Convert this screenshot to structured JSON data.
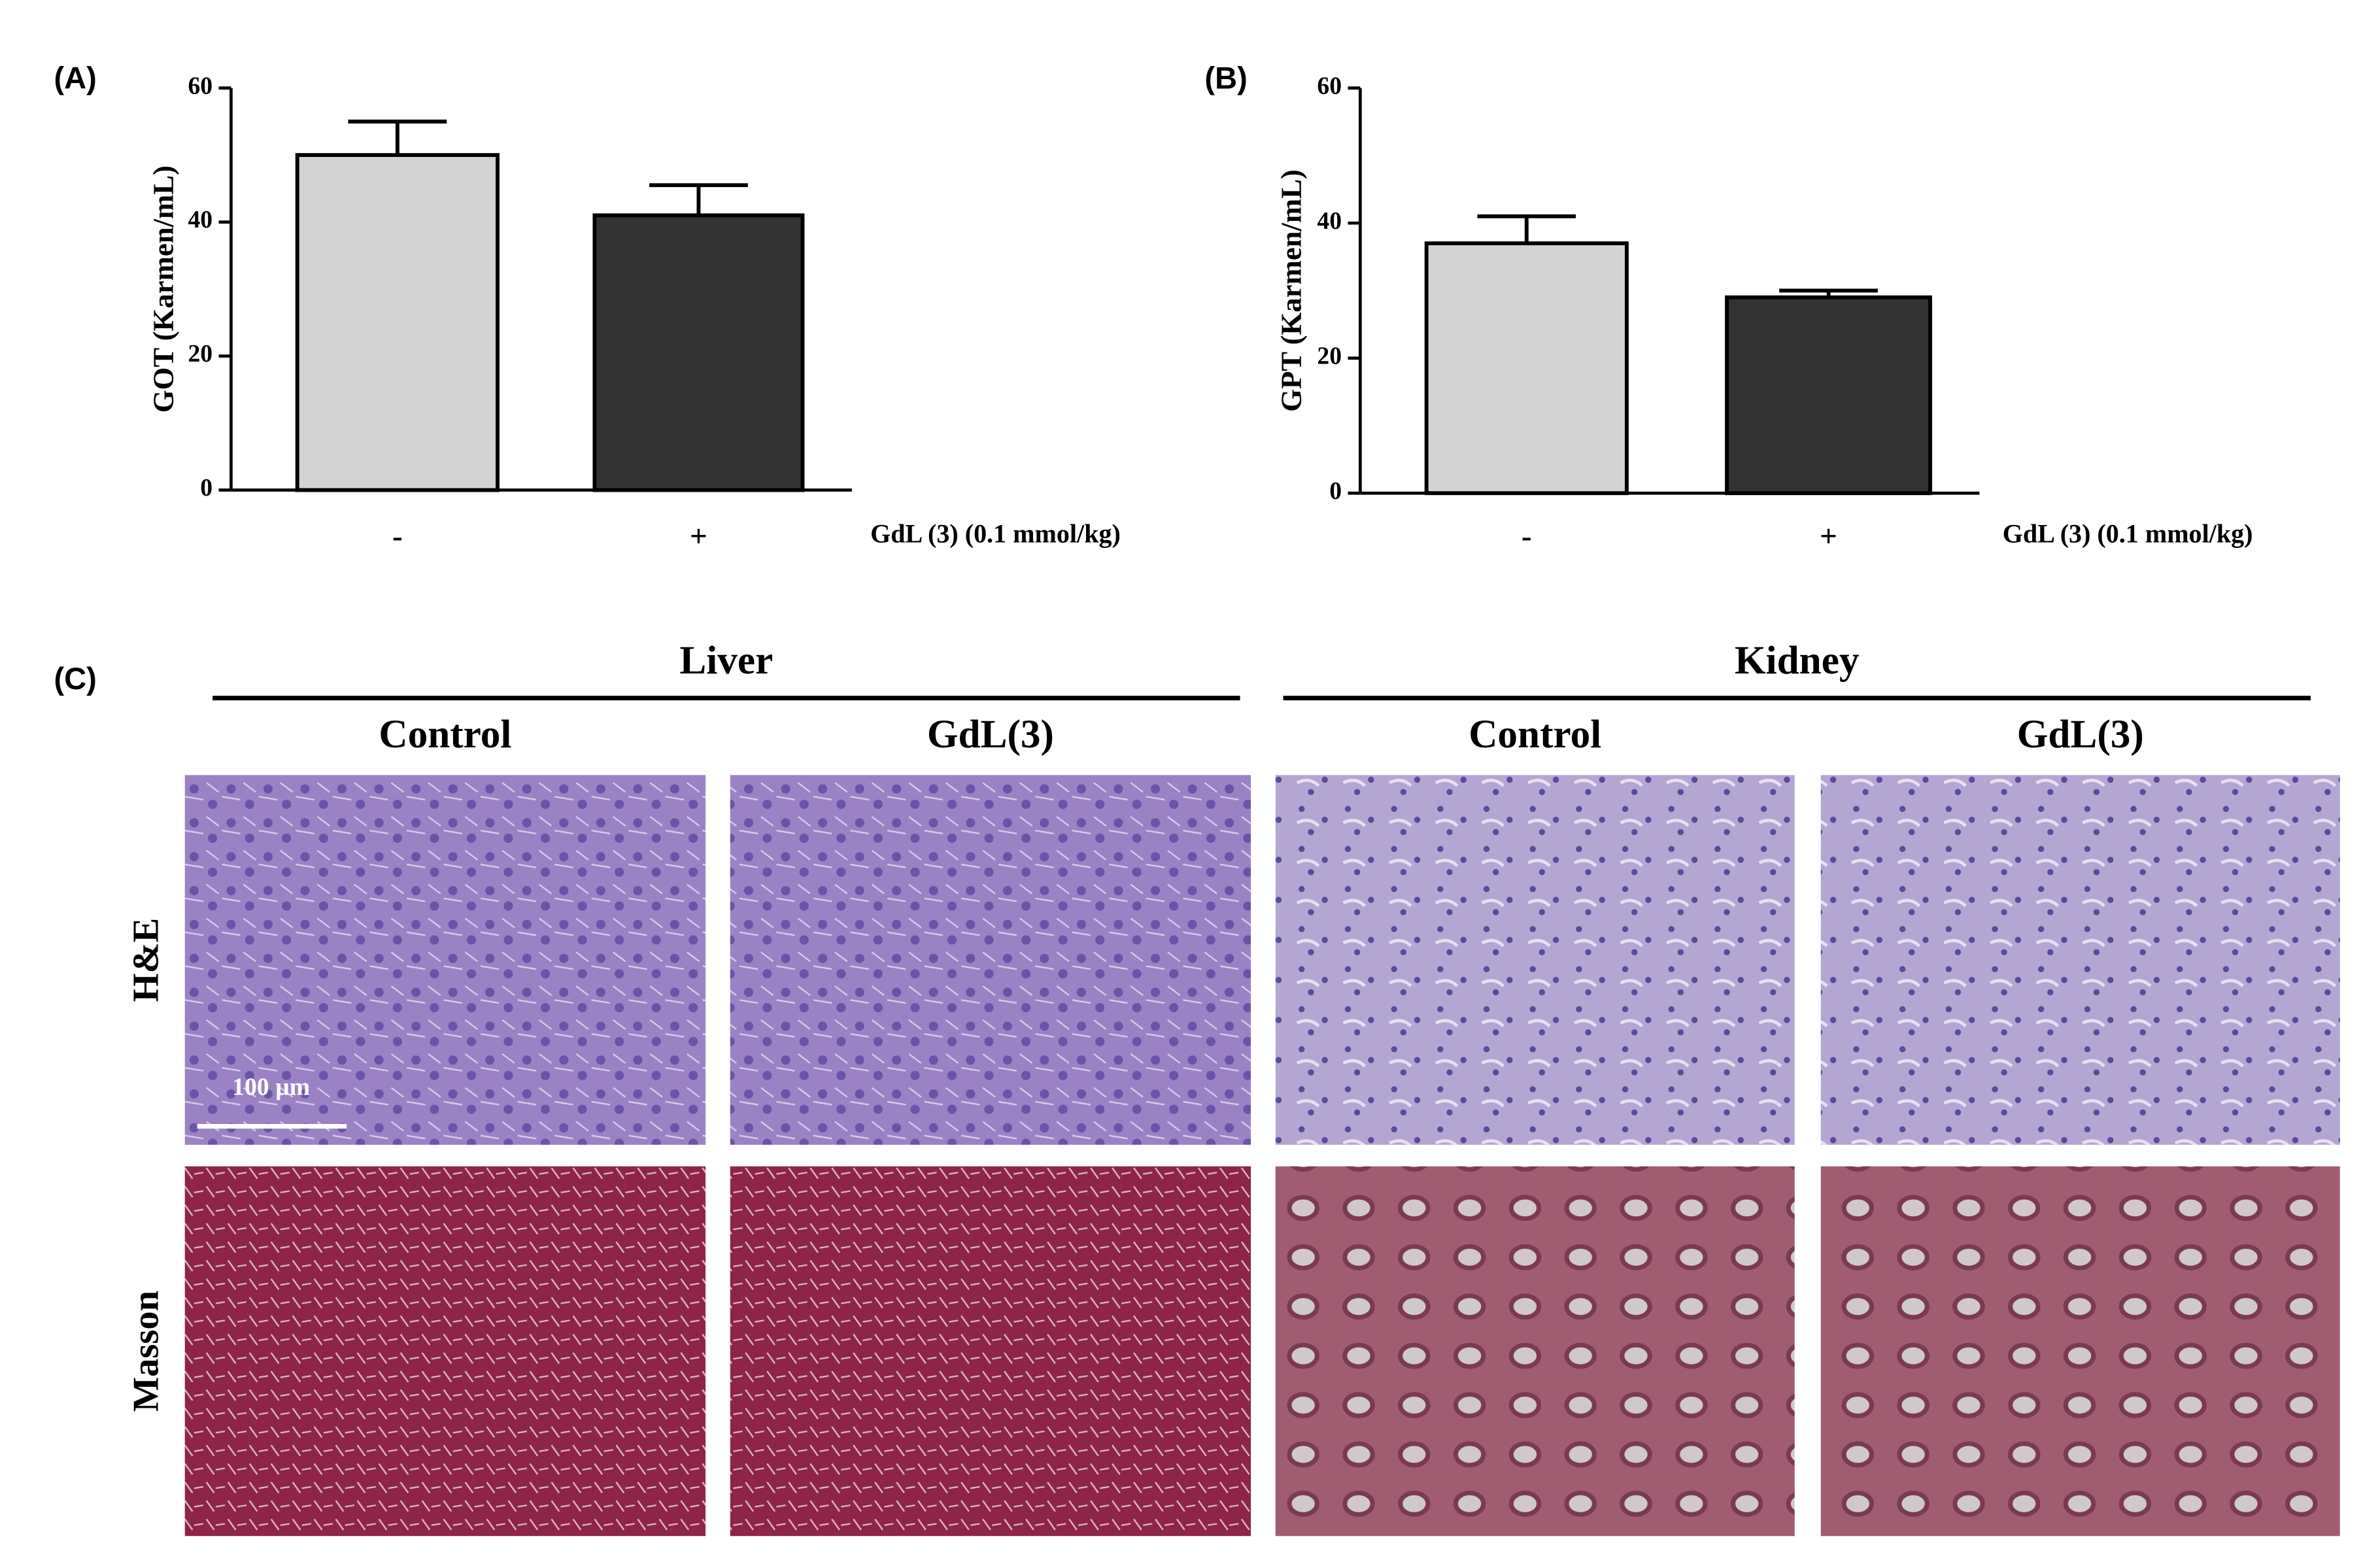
{
  "chart_data": [
    {
      "type": "bar",
      "panel": "(A)",
      "ylabel": "GOT (Karmen/mL)",
      "xlabel": "GdL (3) (0.1 mmol/kg)",
      "categories": [
        "-",
        "+"
      ],
      "values": [
        50,
        41
      ],
      "errors": [
        5,
        4.5
      ],
      "colors": [
        "#d3d3d3",
        "#333333"
      ],
      "ylim": [
        0,
        60
      ],
      "yticks": [
        0,
        20,
        40,
        60
      ]
    },
    {
      "type": "bar",
      "panel": "(B)",
      "ylabel": "GPT (Karmen/mL)",
      "xlabel": "GdL (3) (0.1 mmol/kg)",
      "categories": [
        "-",
        "+"
      ],
      "values": [
        37,
        29
      ],
      "errors": [
        4,
        1
      ],
      "colors": [
        "#d3d3d3",
        "#333333"
      ],
      "ylim": [
        0,
        60
      ],
      "yticks": [
        0,
        20,
        40,
        60
      ]
    }
  ],
  "histology": {
    "panel": "(C)",
    "groups": [
      {
        "name": "Liver",
        "columns": [
          "Control",
          "GdL(3)"
        ]
      },
      {
        "name": "Kidney",
        "columns": [
          "Control",
          "GdL(3)"
        ]
      }
    ],
    "rows": [
      "H&E",
      "Masson"
    ],
    "scale_bar": "100 µm"
  }
}
